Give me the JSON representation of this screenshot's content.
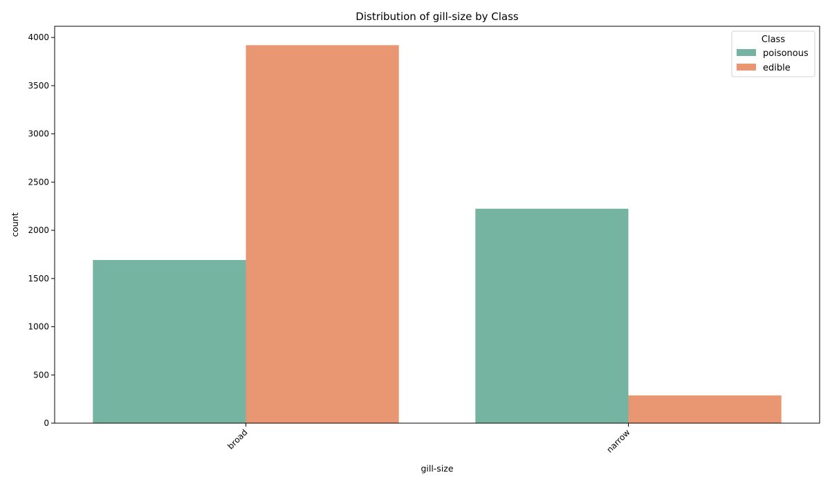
{
  "chart_data": {
    "type": "bar",
    "title": "Distribution of gill-size by Class",
    "xlabel": "gill-size",
    "ylabel": "count",
    "categories": [
      "broad",
      "narrow"
    ],
    "series": [
      {
        "name": "poisonous",
        "values": [
          1692,
          2224
        ],
        "color": "#75b4a0"
      },
      {
        "name": "edible",
        "values": [
          3920,
          288
        ],
        "color": "#e99773"
      }
    ],
    "ylim": [
      0,
      4116
    ],
    "yticks": [
      0,
      500,
      1000,
      1500,
      2000,
      2500,
      3000,
      3500,
      4000
    ],
    "grid": false,
    "legend": {
      "title": "Class",
      "placement": "top-right"
    },
    "xtick_rotation": "45 degrees"
  }
}
